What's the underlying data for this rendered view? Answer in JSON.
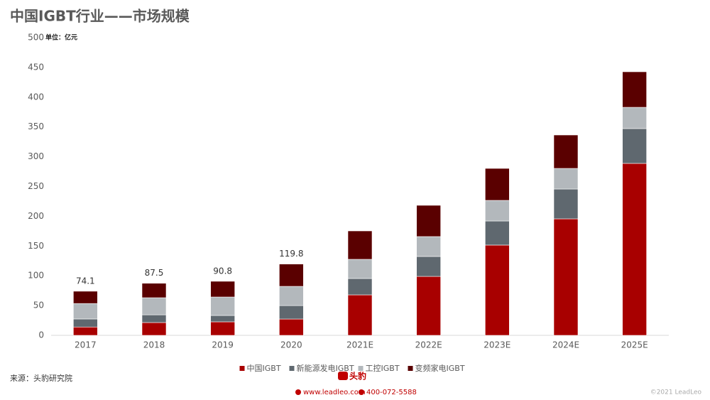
{
  "chart_data": {
    "type": "bar",
    "stacked": true,
    "title": "中国IGBT行业——市场规模",
    "unit": "单位：亿元",
    "categories": [
      "2017",
      "2018",
      "2019",
      "2020",
      "2021E",
      "2022E",
      "2023E",
      "2024E",
      "2025E"
    ],
    "series": [
      {
        "name": "中国IGBT",
        "color": "#a80000",
        "values": [
          14,
          21.5,
          22.7,
          27.4,
          68,
          99,
          151.6,
          195.7,
          288.8
        ]
      },
      {
        "name": "新能源发电IGBT",
        "color": "#5f686f",
        "values": [
          13.5,
          13,
          10.7,
          22.6,
          27.5,
          33.5,
          40.5,
          50.1,
          58.5
        ]
      },
      {
        "name": "工控IGBT",
        "color": "#b3b8bc",
        "values": [
          26,
          28.7,
          31,
          32.3,
          32.2,
          33.4,
          34.6,
          34.6,
          35.7
        ]
      },
      {
        "name": "变频家电IGBT",
        "color": "#5a0000",
        "values": [
          20.6,
          24.3,
          26.4,
          37.5,
          47.7,
          52.5,
          53.7,
          56.1,
          59.7
        ]
      }
    ],
    "totals": [
      74.1,
      87.5,
      90.8,
      119.8
    ],
    "ylim": [
      0,
      500
    ],
    "yticks": [
      0,
      50,
      100,
      150,
      200,
      250,
      300,
      350,
      400,
      450,
      500
    ],
    "grid": false,
    "legend": "bottom"
  },
  "footer": {
    "source": "来源：头豹研究院",
    "logo": "头豹",
    "website": "www.leadleo.com",
    "phone": "400-072-5588",
    "copyright": "©2021 LeadLeo"
  }
}
